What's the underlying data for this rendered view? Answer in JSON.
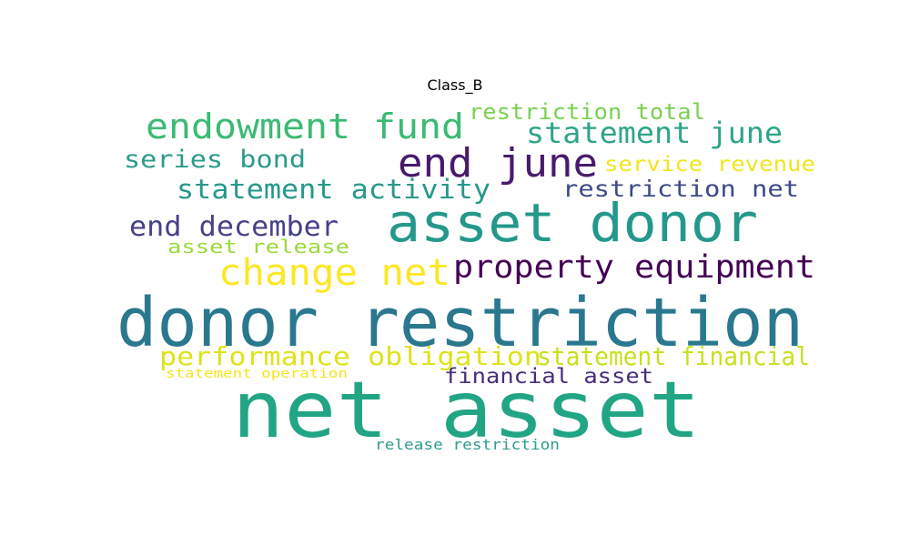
{
  "title": "Class_B",
  "words": [
    {
      "text": "net asset",
      "color": "#21a585"
    },
    {
      "text": "donor restriction",
      "color": "#2a788e"
    },
    {
      "text": "asset donor",
      "color": "#23988b"
    },
    {
      "text": "end june",
      "color": "#481a6c"
    },
    {
      "text": "change net",
      "color": "#fde725"
    },
    {
      "text": "endowment fund",
      "color": "#3bba74"
    },
    {
      "text": "property equipment",
      "color": "#440154"
    },
    {
      "text": "statement june",
      "color": "#2fa58a"
    },
    {
      "text": "statement activity",
      "color": "#26988a"
    },
    {
      "text": "end december",
      "color": "#46418a"
    },
    {
      "text": "series bond",
      "color": "#2b9b8a"
    },
    {
      "text": "performance obligation",
      "color": "#dde318"
    },
    {
      "text": "statement financial",
      "color": "#c8e020"
    },
    {
      "text": "restriction net",
      "color": "#3e4989"
    },
    {
      "text": "financial asset",
      "color": "#472d7b"
    },
    {
      "text": "restriction total",
      "color": "#7ad151"
    },
    {
      "text": "service revenue",
      "color": "#f1e51d"
    },
    {
      "text": "asset release",
      "color": "#9bd93c"
    },
    {
      "text": "release restriction",
      "color": "#2f9b8c"
    },
    {
      "text": "statement operation",
      "color": "#f3e51e"
    }
  ]
}
